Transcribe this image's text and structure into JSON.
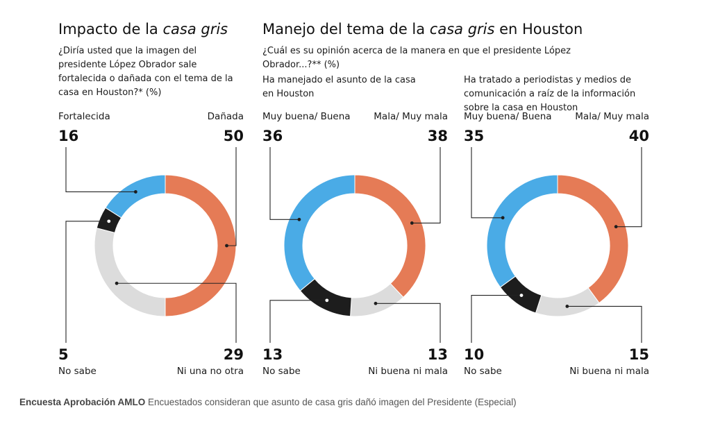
{
  "titles": {
    "left": [
      "Impacto de la ",
      "casa gris"
    ],
    "right": [
      "Manejo del tema de la ",
      "casa gris",
      " en Houston"
    ]
  },
  "questions": {
    "left": [
      "¿Diría usted que la imagen del",
      "presidente López Obrador sale",
      "fortalecida o dañada con el tema de la",
      "casa en Houston?* (%)"
    ],
    "right": [
      "¿Cuál es su opinión acerca de la manera en que el presidente López",
      "Obrador...?** (%)"
    ]
  },
  "caption": {
    "bold": "Encuesta Aprobación AMLO",
    "text": " Encuestados consideran que asunto de casa gris dañó imagen del Presidente (Especial)"
  },
  "colors": {
    "blue": "#4aabe6",
    "orange": "#e57b56",
    "black": "#1d1d1d",
    "gray": "#dcdcdc"
  },
  "chart_data": [
    {
      "type": "pie",
      "subtitle": [],
      "slices": [
        {
          "label": "Dañada",
          "value": 50,
          "color": "#e57b56"
        },
        {
          "label": "Ni una no otra",
          "value": 29,
          "color": "#dcdcdc"
        },
        {
          "label": "No sabe",
          "value": 5,
          "color": "#1d1d1d"
        },
        {
          "label": "Fortalecida",
          "value": 16,
          "color": "#4aabe6"
        }
      ]
    },
    {
      "type": "pie",
      "subtitle": [
        "Ha manejado el asunto de la casa",
        "en Houston"
      ],
      "slices": [
        {
          "label": "Mala/ Muy mala",
          "value": 38,
          "color": "#e57b56"
        },
        {
          "label": "Ni buena ni mala",
          "value": 13,
          "color": "#dcdcdc"
        },
        {
          "label": "No sabe",
          "value": 13,
          "color": "#1d1d1d"
        },
        {
          "label": "Muy buena/ Buena",
          "value": 36,
          "color": "#4aabe6"
        }
      ]
    },
    {
      "type": "pie",
      "subtitle": [
        "Ha tratado a periodistas y medios de",
        "comunicación a raíz de la información",
        "sobre la casa en Houston"
      ],
      "slices": [
        {
          "label": "Mala/ Muy mala",
          "value": 40,
          "color": "#e57b56"
        },
        {
          "label": "Ni buena ni mala",
          "value": 15,
          "color": "#dcdcdc"
        },
        {
          "label": "No sabe",
          "value": 10,
          "color": "#1d1d1d"
        },
        {
          "label": "Muy buena/ Buena",
          "value": 35,
          "color": "#4aabe6"
        }
      ]
    }
  ]
}
